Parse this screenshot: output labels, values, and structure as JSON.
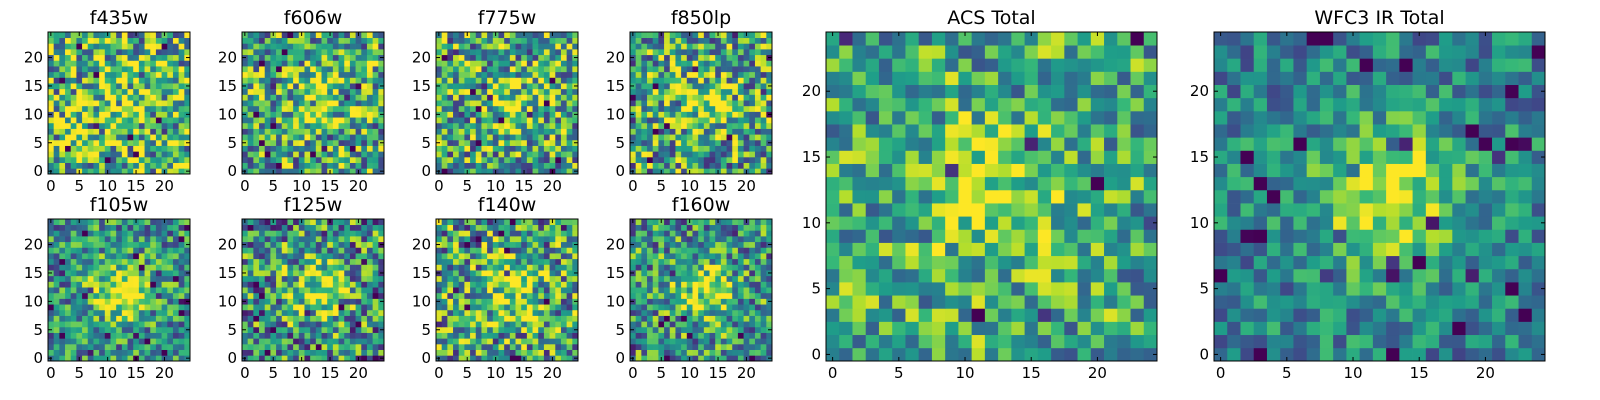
{
  "chart_data": [
    {
      "type": "heatmap",
      "title": "f435w",
      "xticks": [
        0,
        5,
        10,
        15,
        20
      ],
      "yticks": [
        0,
        5,
        10,
        15,
        20
      ],
      "xlim": [
        0,
        25
      ],
      "ylim": [
        0,
        25
      ],
      "grid": false,
      "colormap": "viridis",
      "pattern": {
        "peak": 0.1,
        "noise": 0.5,
        "base": 0.68,
        "seed": 11
      }
    },
    {
      "type": "heatmap",
      "title": "f606w",
      "xticks": [
        0,
        5,
        10,
        15,
        20
      ],
      "yticks": [
        0,
        5,
        10,
        15,
        20
      ],
      "xlim": [
        0,
        25
      ],
      "ylim": [
        0,
        25
      ],
      "grid": false,
      "colormap": "viridis",
      "pattern": {
        "peak": 0.25,
        "noise": 0.45,
        "base": 0.6,
        "seed": 23
      }
    },
    {
      "type": "heatmap",
      "title": "f775w",
      "xticks": [
        0,
        5,
        10,
        15,
        20
      ],
      "yticks": [
        0,
        5,
        10,
        15,
        20
      ],
      "xlim": [
        0,
        25
      ],
      "ylim": [
        0,
        25
      ],
      "grid": false,
      "colormap": "viridis",
      "pattern": {
        "peak": 0.25,
        "noise": 0.45,
        "base": 0.58,
        "seed": 37
      }
    },
    {
      "type": "heatmap",
      "title": "f850lp",
      "xticks": [
        0,
        5,
        10,
        15,
        20
      ],
      "yticks": [
        0,
        5,
        10,
        15,
        20
      ],
      "xlim": [
        0,
        25
      ],
      "ylim": [
        0,
        25
      ],
      "grid": false,
      "colormap": "viridis",
      "pattern": {
        "peak": 0.3,
        "noise": 0.45,
        "base": 0.57,
        "seed": 41
      }
    },
    {
      "type": "heatmap",
      "title": "ACS Total",
      "xticks": [
        0,
        5,
        10,
        15,
        20
      ],
      "yticks": [
        0,
        5,
        10,
        15,
        20
      ],
      "xlim": [
        0,
        25
      ],
      "ylim": [
        0,
        25
      ],
      "grid": false,
      "colormap": "viridis",
      "pattern": {
        "peak": 0.3,
        "noise": 0.35,
        "base": 0.6,
        "seed": 53
      }
    },
    {
      "type": "heatmap",
      "title": "WFC3 IR Total",
      "xticks": [
        0,
        5,
        10,
        15,
        20
      ],
      "yticks": [
        0,
        5,
        10,
        15,
        20
      ],
      "xlim": [
        0,
        25
      ],
      "ylim": [
        0,
        25
      ],
      "grid": false,
      "colormap": "viridis",
      "pattern": {
        "peak": 0.5,
        "noise": 0.25,
        "base": 0.45,
        "seed": 67
      }
    },
    {
      "type": "heatmap",
      "title": "f105w",
      "xticks": [
        0,
        5,
        10,
        15,
        20
      ],
      "yticks": [
        0,
        5,
        10,
        15,
        20
      ],
      "xlim": [
        0,
        25
      ],
      "ylim": [
        0,
        25
      ],
      "grid": false,
      "colormap": "viridis",
      "pattern": {
        "peak": 0.45,
        "noise": 0.35,
        "base": 0.5,
        "seed": 71
      }
    },
    {
      "type": "heatmap",
      "title": "f125w",
      "xticks": [
        0,
        5,
        10,
        15,
        20
      ],
      "yticks": [
        0,
        5,
        10,
        15,
        20
      ],
      "xlim": [
        0,
        25
      ],
      "ylim": [
        0,
        25
      ],
      "grid": false,
      "colormap": "viridis",
      "pattern": {
        "peak": 0.35,
        "noise": 0.45,
        "base": 0.5,
        "seed": 83
      }
    },
    {
      "type": "heatmap",
      "title": "f140w",
      "xticks": [
        0,
        5,
        10,
        15,
        20
      ],
      "yticks": [
        0,
        5,
        10,
        15,
        20
      ],
      "xlim": [
        0,
        25
      ],
      "ylim": [
        0,
        25
      ],
      "grid": false,
      "colormap": "viridis",
      "pattern": {
        "peak": 0.35,
        "noise": 0.45,
        "base": 0.55,
        "seed": 97
      }
    },
    {
      "type": "heatmap",
      "title": "f160w",
      "xticks": [
        0,
        5,
        10,
        15,
        20
      ],
      "yticks": [
        0,
        5,
        10,
        15,
        20
      ],
      "xlim": [
        0,
        25
      ],
      "ylim": [
        0,
        25
      ],
      "grid": false,
      "colormap": "viridis",
      "pattern": {
        "peak": 0.4,
        "noise": 0.4,
        "base": 0.52,
        "seed": 101
      }
    }
  ]
}
